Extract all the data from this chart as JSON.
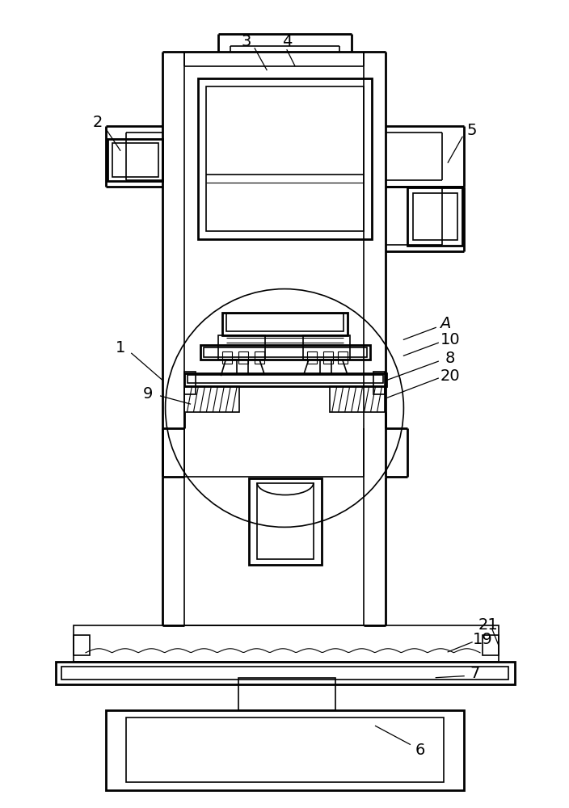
{
  "fig_width": 7.04,
  "fig_height": 10.0,
  "dpi": 100,
  "line_color": "#000000",
  "bg_color": "#ffffff",
  "lw_thick": 2.0,
  "lw_med": 1.2,
  "lw_thin": 0.8
}
